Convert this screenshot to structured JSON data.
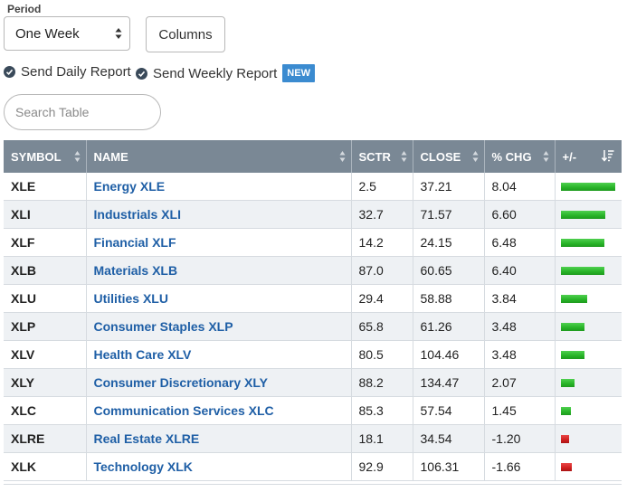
{
  "period": {
    "label": "Period",
    "selected": "One Week"
  },
  "columns_button": "Columns",
  "reports": {
    "daily": "Send Daily Report",
    "weekly": "Send Weekly Report",
    "new_badge": "NEW"
  },
  "search": {
    "placeholder": "Search Table",
    "value": ""
  },
  "table": {
    "headers": {
      "symbol": "SYMBOL",
      "name": "NAME",
      "sctr": "SCTR",
      "close": "CLOSE",
      "chg": "% CHG",
      "plusminus": "+/-"
    },
    "colors": {
      "positive": "#27b327",
      "negative": "#d01e1e",
      "header_bg": "#7a8895",
      "name_link": "#1f5fa6"
    },
    "rows": [
      {
        "symbol": "XLE",
        "name": "Energy XLE",
        "sctr": "2.5",
        "close": "37.21",
        "chg": "8.04",
        "chg_value": 8.04
      },
      {
        "symbol": "XLI",
        "name": "Industrials XLI",
        "sctr": "32.7",
        "close": "71.57",
        "chg": "6.60",
        "chg_value": 6.6
      },
      {
        "symbol": "XLF",
        "name": "Financial XLF",
        "sctr": "14.2",
        "close": "24.15",
        "chg": "6.48",
        "chg_value": 6.48
      },
      {
        "symbol": "XLB",
        "name": "Materials XLB",
        "sctr": "87.0",
        "close": "60.65",
        "chg": "6.40",
        "chg_value": 6.4
      },
      {
        "symbol": "XLU",
        "name": "Utilities XLU",
        "sctr": "29.4",
        "close": "58.88",
        "chg": "3.84",
        "chg_value": 3.84
      },
      {
        "symbol": "XLP",
        "name": "Consumer Staples XLP",
        "sctr": "65.8",
        "close": "61.26",
        "chg": "3.48",
        "chg_value": 3.48
      },
      {
        "symbol": "XLV",
        "name": "Health Care XLV",
        "sctr": "80.5",
        "close": "104.46",
        "chg": "3.48",
        "chg_value": 3.48
      },
      {
        "symbol": "XLY",
        "name": "Consumer Discretionary XLY",
        "sctr": "88.2",
        "close": "134.47",
        "chg": "2.07",
        "chg_value": 2.07
      },
      {
        "symbol": "XLC",
        "name": "Communication Services XLC",
        "sctr": "85.3",
        "close": "57.54",
        "chg": "1.45",
        "chg_value": 1.45
      },
      {
        "symbol": "XLRE",
        "name": "Real Estate XLRE",
        "sctr": "18.1",
        "close": "34.54",
        "chg": "-1.20",
        "chg_value": -1.2
      },
      {
        "symbol": "XLK",
        "name": "Technology XLK",
        "sctr": "92.9",
        "close": "106.31",
        "chg": "-1.66",
        "chg_value": -1.66
      }
    ]
  }
}
